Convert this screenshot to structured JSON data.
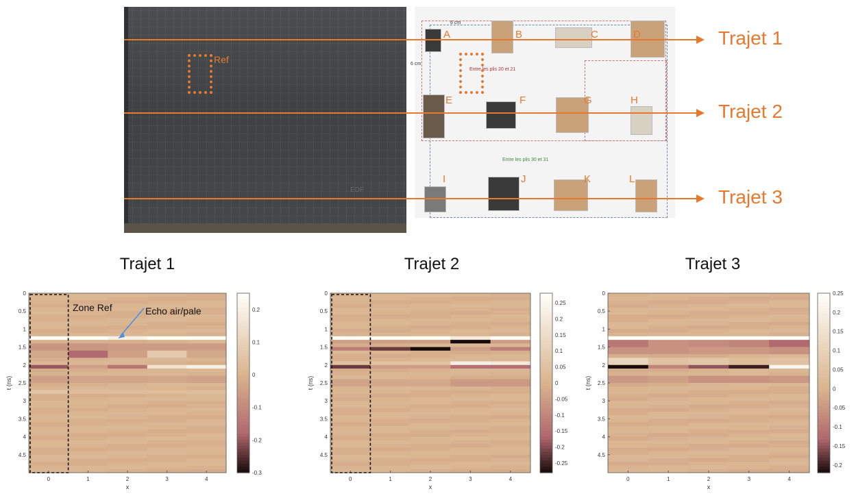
{
  "photo": {
    "ref_label": "Ref",
    "stamp": "EDF"
  },
  "schema": {
    "dim_top": "6 cm",
    "dim_left": "6 cm",
    "note_red": "Entre les plis 20 et 21",
    "note_green": "Entre les plis 30 et 31",
    "letters": [
      "A",
      "B",
      "C",
      "D",
      "E",
      "F",
      "G",
      "H",
      "I",
      "J",
      "K",
      "L"
    ]
  },
  "trajets": {
    "t1": "Trajet 1",
    "t2": "Trajet 2",
    "t3": "Trajet 3"
  },
  "colors": {
    "accent": "#e9782f",
    "base_map": "#d9b48f"
  },
  "annotations": {
    "zone_ref": "Zone Ref",
    "echo": "Echo air/pale"
  },
  "chart_data": [
    {
      "type": "heatmap",
      "title": "Trajet 1",
      "xlabel": "x",
      "ylabel": "t (ns)",
      "x_ticks": [
        "0",
        "1",
        "2",
        "3",
        "4"
      ],
      "y_ticks": [
        "0",
        "0.5",
        "1",
        "1.5",
        "2",
        "2.5",
        "3",
        "3.5",
        "4",
        "4.5"
      ],
      "xlim": [
        -0.5,
        4.5
      ],
      "ylim": [
        0,
        5
      ],
      "colorbar_ticks": [
        "0.2",
        "0.1",
        "0",
        "-0.1",
        "-0.2",
        "-0.3"
      ],
      "clim": [
        -0.3,
        0.25
      ],
      "bands": [
        {
          "t": 1.25,
          "values": [
            0.24,
            0.24,
            0.2,
            0.24,
            0.24
          ]
        },
        {
          "t": 1.5,
          "values": [
            -0.12,
            -0.12,
            -0.1,
            -0.1,
            -0.1
          ]
        },
        {
          "t": 1.7,
          "values": [
            -0.05,
            -0.3,
            -0.08,
            0.12,
            -0.05
          ]
        },
        {
          "t": 2.05,
          "values": [
            -0.2,
            -0.05,
            -0.15,
            0.15,
            0.2
          ]
        },
        {
          "t": 2.4,
          "values": [
            -0.08,
            -0.06,
            -0.06,
            -0.05,
            -0.07
          ]
        },
        {
          "t": 2.75,
          "values": [
            0.06,
            0.03,
            0.03,
            0.03,
            0.03
          ]
        }
      ]
    },
    {
      "type": "heatmap",
      "title": "Trajet 2",
      "xlabel": "x",
      "ylabel": "t (ns)",
      "x_ticks": [
        "0",
        "1",
        "2",
        "3",
        "4"
      ],
      "y_ticks": [
        "0",
        "0.5",
        "1",
        "1.5",
        "2",
        "2.5",
        "3",
        "3.5",
        "4",
        "4.5"
      ],
      "xlim": [
        -0.5,
        4.5
      ],
      "ylim": [
        0,
        5
      ],
      "colorbar_ticks": [
        "0.25",
        "0.2",
        "0.15",
        "0.1",
        "0.05",
        "0",
        "-0.05",
        "-0.1",
        "-0.15",
        "-0.2",
        "-0.25"
      ],
      "clim": [
        -0.28,
        0.28
      ],
      "bands": [
        {
          "t": 1.25,
          "values": [
            0.27,
            0.27,
            0.27,
            0.2,
            0.27
          ]
        },
        {
          "t": 1.35,
          "values": [
            -0.05,
            -0.05,
            -0.05,
            -0.28,
            -0.05
          ]
        },
        {
          "t": 1.55,
          "values": [
            -0.12,
            -0.22,
            -0.28,
            -0.05,
            -0.12
          ]
        },
        {
          "t": 1.95,
          "values": [
            0.05,
            0.05,
            0.05,
            0.22,
            0.2
          ]
        },
        {
          "t": 2.05,
          "values": [
            -0.22,
            -0.05,
            -0.05,
            -0.15,
            -0.15
          ]
        },
        {
          "t": 2.5,
          "values": [
            -0.06,
            -0.04,
            -0.04,
            -0.1,
            -0.1
          ]
        }
      ]
    },
    {
      "type": "heatmap",
      "title": "Trajet 3",
      "xlabel": "x",
      "ylabel": "t (ns)",
      "x_ticks": [
        "0",
        "1",
        "2",
        "3",
        "4"
      ],
      "y_ticks": [
        "0",
        "0.5",
        "1",
        "1.5",
        "2",
        "2.5",
        "3",
        "3.5",
        "4",
        "4.5"
      ],
      "xlim": [
        -0.5,
        4.5
      ],
      "ylim": [
        0,
        5
      ],
      "colorbar_ticks": [
        "0.25",
        "0.2",
        "0.15",
        "0.1",
        "0.05",
        "0",
        "-0.05",
        "-0.1",
        "-0.15",
        "-0.2"
      ],
      "clim": [
        -0.22,
        0.25
      ],
      "bands": [
        {
          "t": 1.25,
          "values": [
            0.25,
            0.25,
            0.25,
            0.25,
            0.25
          ]
        },
        {
          "t": 1.4,
          "values": [
            -0.18,
            -0.1,
            -0.12,
            -0.14,
            -0.22
          ]
        },
        {
          "t": 1.6,
          "values": [
            -0.1,
            -0.1,
            -0.08,
            -0.08,
            -0.1
          ]
        },
        {
          "t": 1.9,
          "values": [
            0.18,
            0.08,
            0.1,
            0.05,
            0.08
          ]
        },
        {
          "t": 2.05,
          "values": [
            -0.22,
            -0.08,
            -0.15,
            -0.2,
            0.22
          ]
        },
        {
          "t": 2.4,
          "values": [
            -0.08,
            -0.06,
            -0.1,
            -0.1,
            -0.08
          ]
        }
      ]
    }
  ]
}
